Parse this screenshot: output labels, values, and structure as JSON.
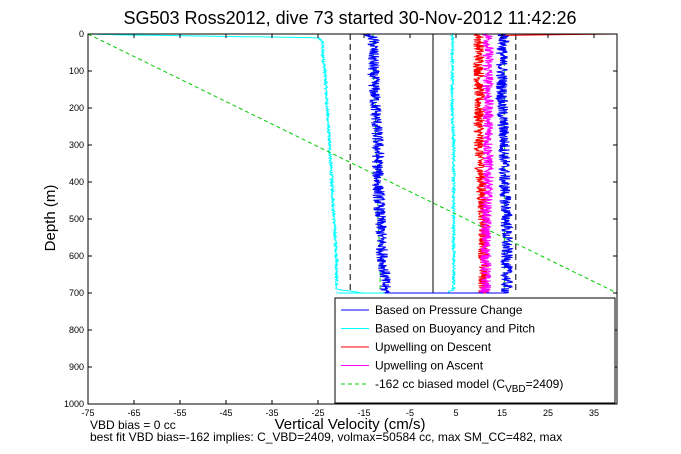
{
  "chart_data": {
    "type": "line",
    "title": "SG503 Ross2012, dive 73 started 30-Nov-2012 11:42:26",
    "xlabel": "Vertical Velocity (cm/s)",
    "ylabel": "Depth (m)",
    "xlim": [
      -75,
      40
    ],
    "ylim": [
      0,
      1000
    ],
    "y_reversed": true,
    "x_ticks": [
      -75,
      -65,
      -55,
      -45,
      -35,
      -25,
      -15,
      -5,
      5,
      15,
      25,
      35
    ],
    "y_ticks": [
      0,
      100,
      200,
      300,
      400,
      500,
      600,
      700,
      800,
      900,
      1000
    ],
    "grid": false,
    "legend_position": "bottom-right",
    "legend": [
      {
        "label": "Based on Pressure Change",
        "color": "#0000ff",
        "style": "solid"
      },
      {
        "label": "Based on Buoyancy and Pitch",
        "color": "#00ffff",
        "style": "solid"
      },
      {
        "label": "Upwelling on Descent",
        "color": "#ff0000",
        "style": "solid"
      },
      {
        "label": "Upwelling on Ascent",
        "color": "#ff00ff",
        "style": "solid"
      },
      {
        "label_prefix": "-162 cc biased model (C",
        "label_sub": "VBD",
        "label_suffix": "=2409)",
        "color": "#00cc00",
        "style": "dashed"
      }
    ],
    "series": [
      {
        "name": "Based on Pressure Change",
        "color": "#0000ff",
        "noise": 1.3,
        "segments": [
          {
            "depth": [
              0,
              10,
              50,
              100,
              200,
              300,
              400,
              500,
              600,
              650,
              690,
              700
            ],
            "velocity": [
              -15,
              -13,
              -13,
              -13,
              -12.5,
              -12,
              -12,
              -11.5,
              -11,
              -10.5,
              -10.5,
              -10
            ]
          },
          {
            "depth": [
              700,
              690,
              650,
              600,
              500,
              400,
              300,
              200,
              100,
              50,
              10,
              0
            ],
            "velocity": [
              16,
              16,
              16,
              16,
              16,
              15.5,
              15.5,
              15,
              15,
              15,
              15.5,
              15
            ]
          }
        ]
      },
      {
        "name": "Based on Buoyancy and Pitch",
        "color": "#00ffff",
        "noise": 0.3,
        "segments": [
          {
            "depth": [
              0,
              2,
              10,
              20,
              30,
              50,
              100,
              200,
              300,
              400,
              500,
              600,
              690,
              700
            ],
            "velocity": [
              -75,
              -70,
              -25,
              -24,
              -24,
              -24,
              -23.5,
              -23,
              -22.5,
              -22,
              -21.5,
              -21,
              -21,
              -15
            ]
          },
          {
            "depth": [
              700,
              690,
              600,
              500,
              400,
              300,
              200,
              100,
              50,
              20,
              10,
              0
            ],
            "velocity": [
              3,
              4.5,
              4.5,
              4.5,
              4.5,
              4.5,
              4.2,
              4.2,
              4.2,
              4.2,
              4.2,
              4
            ]
          }
        ]
      },
      {
        "name": "Upwelling on Descent",
        "color": "#ff0000",
        "noise": 1.2,
        "segments": [
          {
            "depth": [
              0,
              10,
              50,
              100,
              200,
              300,
              400,
              500,
              600,
              650,
              690,
              700
            ],
            "velocity": [
              10,
              10,
              10,
              10,
              10,
              10,
              10.5,
              11,
              11,
              11,
              11,
              11
            ]
          },
          {
            "depth": [
              0,
              2,
              4
            ],
            "velocity": [
              40,
              25,
              15
            ]
          }
        ]
      },
      {
        "name": "Upwelling on Ascent",
        "color": "#ff00ff",
        "noise": 1.2,
        "segments": [
          {
            "depth": [
              700,
              690,
              650,
              600,
              500,
              400,
              300,
              200,
              100,
              50,
              10,
              0
            ],
            "velocity": [
              11,
              11.5,
              11.5,
              11.5,
              11.5,
              12,
              12,
              12,
              12,
              12,
              12,
              12
            ]
          }
        ]
      },
      {
        "name": "-162 cc biased model",
        "color": "#00cc00",
        "style": "dashed",
        "noise": 0,
        "segments": [
          {
            "depth": [
              0,
              50,
              100,
              200,
              300,
              400,
              500,
              600,
              700
            ],
            "velocity": [
              -13,
              -13,
              -13,
              -12.5,
              -12.5,
              -12,
              -12,
              -11.5,
              -11.5
            ]
          },
          {
            "depth": [
              0,
              50,
              100,
              200,
              300,
              400,
              500,
              600,
              700
            ],
            "velocity": [
              15.5,
              15.5,
              15.5,
              15.5,
              15.5,
              15.5,
              15.5,
              15.5,
              15.5
            ]
          },
          {
            "depth": [
              0,
              700
            ],
            "velocity": [
              -75,
              40
            ]
          }
        ]
      }
    ],
    "reference_lines": [
      {
        "x": 0,
        "y_range": [
          0,
          700
        ],
        "style": "solid",
        "color": "#000000"
      },
      {
        "x": -18,
        "y_range": [
          0,
          700
        ],
        "style": "dashed",
        "color": "#000000"
      },
      {
        "x": 18,
        "y_range": [
          0,
          700
        ],
        "style": "dashed",
        "color": "#000000"
      }
    ],
    "annotations": [
      "VBD bias = 0 cc",
      "best fit VBD bias=-162 implies: C_VBD=2409, volmax=50584 cc, max SM_CC=482, max"
    ]
  }
}
